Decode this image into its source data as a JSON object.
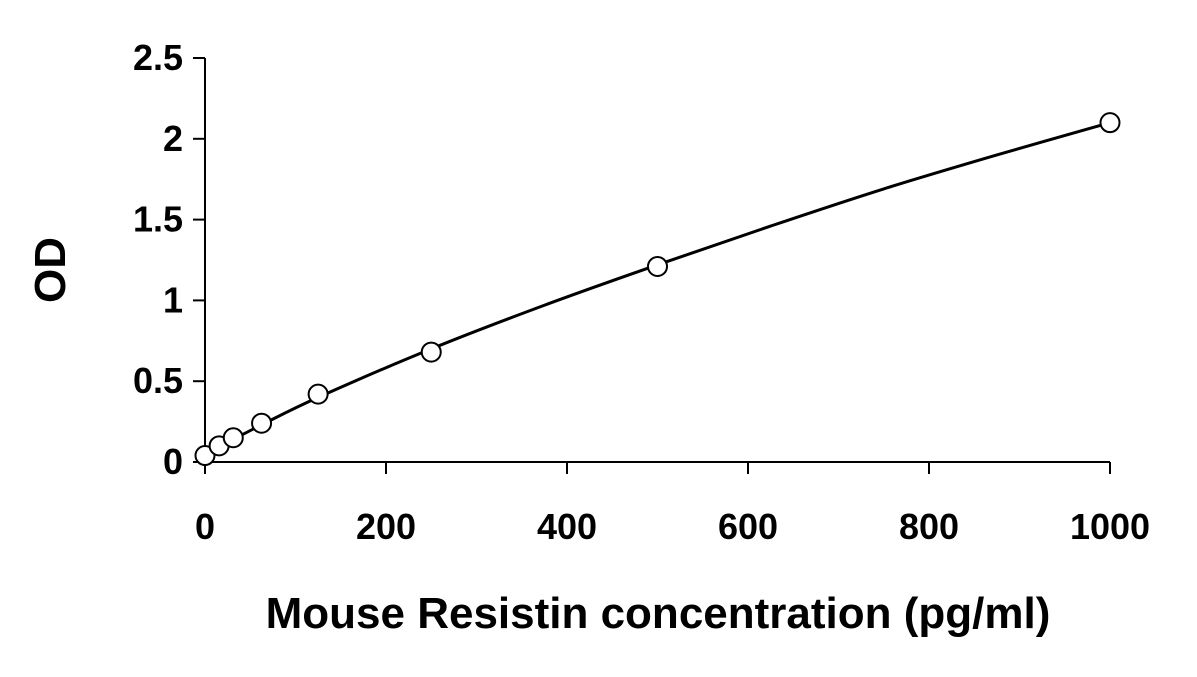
{
  "chart_data": {
    "type": "scatter",
    "title": "",
    "xlabel": "Mouse Resistin concentration (pg/ml)",
    "ylabel": "OD",
    "xlim": [
      0,
      1000
    ],
    "ylim": [
      0,
      2.5
    ],
    "xticks": [
      0,
      200,
      400,
      600,
      800,
      1000
    ],
    "yticks": [
      0,
      0.5,
      1,
      1.5,
      2,
      2.5
    ],
    "xtick_labels": [
      "0",
      "200",
      "400",
      "600",
      "800",
      "1000"
    ],
    "ytick_labels": [
      "0",
      "0.5",
      "1",
      "1.5",
      "2",
      "2.5"
    ],
    "grid": false,
    "legend": "none",
    "series": [
      {
        "marker": "open-circle",
        "x": [
          0,
          15.6,
          31.25,
          62.5,
          125,
          250,
          500,
          1000
        ],
        "y": [
          0.04,
          0.1,
          0.15,
          0.24,
          0.42,
          0.68,
          1.21,
          2.1
        ]
      }
    ],
    "fit_curve": {
      "style": "smooth line",
      "x": [
        0,
        15.6,
        31.25,
        62.5,
        125,
        250,
        375,
        500,
        625,
        750,
        875,
        1000
      ],
      "y": [
        0.04,
        0.1,
        0.14,
        0.23,
        0.4,
        0.7,
        0.97,
        1.22,
        1.46,
        1.69,
        1.9,
        2.1
      ]
    }
  }
}
